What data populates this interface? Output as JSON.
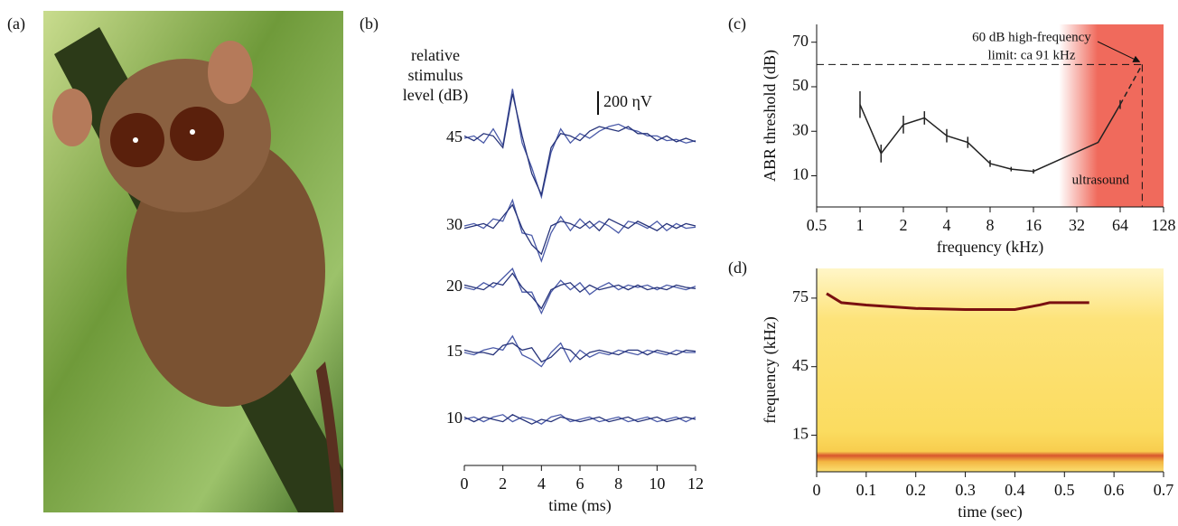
{
  "panel_labels": [
    "(a)",
    "(b)",
    "(c)",
    "(d)"
  ],
  "chart_data": [
    {
      "type": "traces",
      "heading": "relative stimulus level (dB)",
      "x_label": "time (ms)",
      "xlim": [
        0,
        12
      ],
      "xticks": [
        0,
        2,
        4,
        6,
        8,
        10,
        12
      ],
      "scale_bar": {
        "value": 200,
        "label": "200 ηV"
      },
      "x": [
        0,
        0.5,
        1,
        1.5,
        2,
        2.5,
        3,
        3.5,
        4,
        4.5,
        5,
        5.5,
        6,
        6.5,
        7,
        7.5,
        8,
        8.5,
        9,
        9.5,
        10,
        10.5,
        11,
        11.5,
        12
      ],
      "colors": [
        "#4a5aa8",
        "#26337a"
      ],
      "series": [
        {
          "name": "45",
          "traces": [
            [
              0,
              20,
              -40,
              80,
              -60,
              420,
              -40,
              -250,
              -500,
              -120,
              80,
              -40,
              40,
              0,
              60,
              100,
              120,
              80,
              60,
              20,
              20,
              -20,
              -10,
              -40,
              -20
            ],
            [
              20,
              -20,
              40,
              20,
              -80,
              380,
              20,
              -300,
              -480,
              -80,
              40,
              20,
              -20,
              60,
              100,
              80,
              60,
              100,
              40,
              40,
              -20,
              20,
              -30,
              0,
              -30
            ]
          ]
        },
        {
          "name": "30",
          "traces": [
            [
              0,
              20,
              -20,
              60,
              40,
              220,
              -60,
              -80,
              -300,
              -60,
              80,
              -40,
              60,
              -20,
              40,
              0,
              -60,
              40,
              20,
              -20,
              40,
              -40,
              20,
              -20,
              -10
            ],
            [
              -20,
              0,
              20,
              -20,
              80,
              180,
              -20,
              -160,
              -240,
              0,
              40,
              20,
              -20,
              40,
              -40,
              60,
              20,
              -20,
              40,
              0,
              -40,
              20,
              -20,
              20,
              0
            ]
          ]
        },
        {
          "name": "20",
          "traces": [
            [
              0,
              -20,
              40,
              0,
              80,
              160,
              -40,
              -40,
              -220,
              -40,
              60,
              -20,
              40,
              -60,
              0,
              40,
              -20,
              20,
              0,
              20,
              -20,
              20,
              0,
              -20,
              10
            ],
            [
              20,
              0,
              -20,
              40,
              20,
              120,
              0,
              -80,
              -180,
              -20,
              20,
              40,
              -40,
              20,
              -20,
              0,
              20,
              -20,
              20,
              -20,
              0,
              -20,
              20,
              0,
              -10
            ]
          ]
        },
        {
          "name": "15",
          "traces": [
            [
              0,
              -20,
              20,
              40,
              20,
              140,
              -20,
              -60,
              -120,
              0,
              80,
              -80,
              20,
              -40,
              0,
              -20,
              20,
              0,
              -20,
              20,
              0,
              -20,
              20,
              0,
              0
            ],
            [
              20,
              0,
              0,
              -20,
              60,
              80,
              20,
              40,
              -80,
              -40,
              40,
              20,
              -60,
              0,
              20,
              0,
              -20,
              20,
              20,
              -20,
              20,
              0,
              -20,
              20,
              10
            ]
          ]
        },
        {
          "name": "10",
          "traces": [
            [
              0,
              20,
              -20,
              20,
              40,
              -20,
              20,
              0,
              -40,
              20,
              40,
              -20,
              0,
              20,
              -20,
              0,
              20,
              -20,
              0,
              20,
              -20,
              0,
              20,
              -20,
              20
            ],
            [
              20,
              -20,
              20,
              0,
              -20,
              40,
              0,
              -40,
              0,
              -20,
              20,
              0,
              -20,
              0,
              20,
              -20,
              0,
              20,
              -20,
              0,
              20,
              -20,
              0,
              20,
              0
            ]
          ]
        }
      ]
    },
    {
      "type": "line",
      "x_label": "frequency (kHz)",
      "y_label": "ABR threshold (dB)",
      "xscale": "log",
      "xlim": [
        0.5,
        128
      ],
      "xticks": [
        0.5,
        1,
        2,
        4,
        8,
        16,
        32,
        64,
        128
      ],
      "ylim": [
        -4,
        78
      ],
      "yticks": [
        10,
        30,
        50,
        70
      ],
      "x": [
        1,
        1.4,
        2,
        2.8,
        4,
        5.6,
        8,
        11.2,
        16,
        45,
        64
      ],
      "values": [
        42,
        20,
        33,
        36,
        28,
        25,
        15.5,
        13,
        12,
        25,
        42
      ],
      "errors": [
        6,
        4,
        4,
        3,
        3,
        2.5,
        1.5,
        1,
        1,
        0,
        2
      ],
      "color": "#222222",
      "limit": {
        "x": 91,
        "y": 60
      },
      "annotation": [
        "60 dB high-frequency",
        "limit: ca 91 kHz"
      ],
      "shade_from": 24,
      "shade_color": "#f06a5c",
      "region_label": "ultrasound"
    },
    {
      "type": "spectrogram",
      "x_label": "time (sec)",
      "y_label": "frequency (kHz)",
      "xlim": [
        0,
        0.7
      ],
      "xticks": [
        0,
        0.1,
        0.2,
        0.3,
        0.4,
        0.5,
        0.6,
        0.7
      ],
      "ylim": [
        -1,
        88
      ],
      "yticks": [
        15,
        45,
        75
      ],
      "x": [
        0.02,
        0.05,
        0.1,
        0.2,
        0.3,
        0.4,
        0.45,
        0.47,
        0.55
      ],
      "values": [
        77,
        73,
        72,
        70.5,
        70,
        70,
        72,
        73,
        73
      ],
      "color": "#7a1010"
    }
  ]
}
